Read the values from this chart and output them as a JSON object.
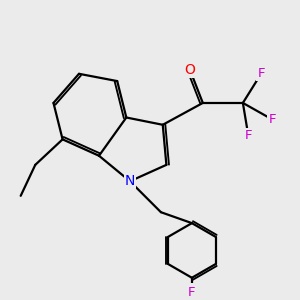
{
  "bg_color": "#ebebeb",
  "bond_color": "#000000",
  "N_color": "#0000ff",
  "O_color": "#ff0000",
  "F_color": "#cc00cc",
  "line_width": 1.6,
  "figsize": [
    3.0,
    3.0
  ],
  "dpi": 100,
  "xlim": [
    -2.2,
    5.0
  ],
  "ylim": [
    -3.5,
    4.2
  ]
}
